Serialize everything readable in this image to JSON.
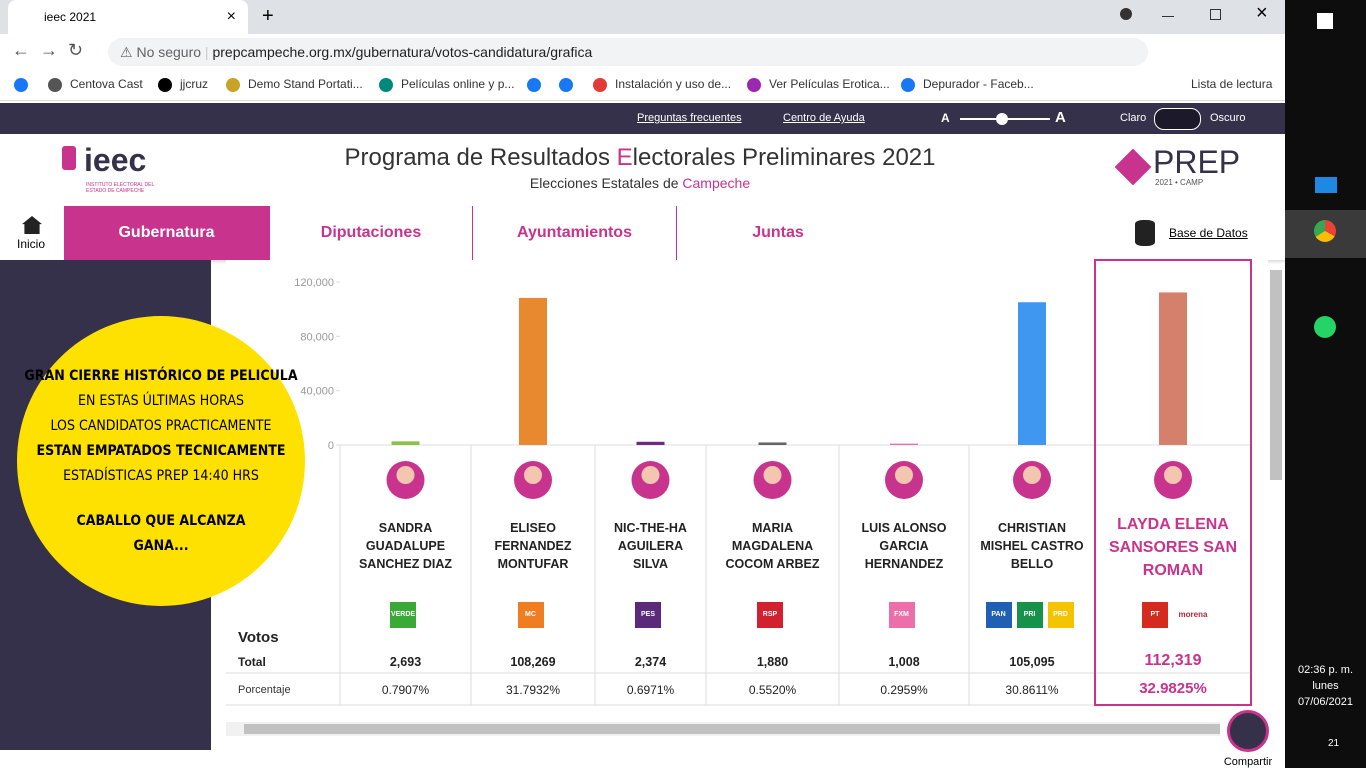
{
  "browser": {
    "tab_title": "ieec 2021",
    "security": "No seguro",
    "url": "prepcampeche.org.mx/gubernatura/votos-candidatura/grafica",
    "bookmarks": [
      "Centova Cast",
      "jjcruz",
      "Demo Stand Portati...",
      "Películas online y p...",
      "Instalación y uso de...",
      "Ver Películas Erotica...",
      "Depurador - Faceb..."
    ],
    "reading_list": "Lista de lectura"
  },
  "topbar": {
    "faq": "Preguntas frecuentes",
    "help": "Centro de Ayuda",
    "font_small": "A",
    "font_large": "A",
    "light": "Claro",
    "dark": "Oscuro"
  },
  "header": {
    "logo": "ieec",
    "logo_sub": "INSTITUTO ELECTORAL DEL ESTADO DE CAMPECHE",
    "title_parts": [
      "Programa de Resultados",
      "E",
      "lectorales Preliminares 2021"
    ],
    "subtitle_prefix": "Elecciones Estatales de",
    "subtitle_state": "Campeche",
    "prep": "PREP",
    "prep_sub": "2021 • CAMP"
  },
  "nav": {
    "home": "Inicio",
    "tabs": [
      "Gubernatura",
      "Diputaciones",
      "Ayuntamientos",
      "Juntas"
    ],
    "database": "Base de Datos"
  },
  "promo": {
    "lines": [
      {
        "text": "GRAN CIERRE HISTÓRICO DE PELICULA",
        "bold": true
      },
      {
        "text": "EN ESTAS ÚLTIMAS HORAS",
        "bold": false
      },
      {
        "text": "LOS CANDIDATOS PRACTICAMENTE",
        "bold": false
      },
      {
        "text": "ESTAN EMPATADOS TECNICAMENTE",
        "bold": true
      },
      {
        "text": "ESTADÍSTICAS PREP 14:40 HRS",
        "bold": false
      },
      {
        "text": "CABALLO QUE ALCANZA",
        "bold": true
      },
      {
        "text": "GANA...",
        "bold": true
      }
    ]
  },
  "chart_data": {
    "type": "bar",
    "categories": [
      "SANDRA GUADALUPE SANCHEZ DIAZ",
      "ELISEO FERNANDEZ MONTUFAR",
      "NIC-THE-HA AGUILERA SILVA",
      "MARIA MAGDALENA COCOM ARBEZ",
      "LUIS ALONSO GARCIA HERNANDEZ",
      "CHRISTIAN MISHEL CASTRO BELLO",
      "LAYDA ELENA SANSORES SAN ROMAN"
    ],
    "values": [
      2693,
      108269,
      2374,
      1880,
      1008,
      105095,
      112319
    ],
    "value_labels": [
      "2,693",
      "108,269",
      "2,374",
      "1,880",
      "1,008",
      "105,095",
      "112,319"
    ],
    "colors": [
      "#8bc34a",
      "#e8892f",
      "#6a2c82",
      "#666666",
      "#e86fb0",
      "#3f97f0",
      "#d4806b"
    ],
    "ylim": [
      0,
      120000
    ],
    "yticks": [
      0,
      {
        "value": 40000,
        "label": "40,000"
      },
      {
        "value": 80000,
        "label": "80,000"
      },
      {
        "value": 120000,
        "label": "120,000"
      }
    ],
    "highlight": 6
  },
  "table": {
    "votes_label": "Votos",
    "total_label": "Total",
    "percent_label": "Porcentaje",
    "percentages": [
      "0.7907%",
      "31.7932%",
      "0.6971%",
      "0.5520%",
      "0.2959%",
      "30.8611%",
      "32.9825%"
    ],
    "parties": [
      [
        "VERDE"
      ],
      [
        "MC"
      ],
      [
        "PES"
      ],
      [
        "RSP"
      ],
      [
        "FXM"
      ],
      [
        "PAN",
        "PRI",
        "PRD"
      ],
      [
        "PT",
        "morena"
      ]
    ]
  },
  "share": "Compartir",
  "taskbar": {
    "time": "02:36 p. m.",
    "day": "lunes",
    "date": "07/06/2021",
    "notifications": "21"
  }
}
